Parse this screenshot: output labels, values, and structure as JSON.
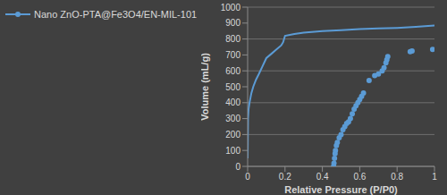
{
  "chart_data": {
    "type": "line",
    "xlabel": "Relative Pressure (P/P0)",
    "ylabel": "Volume (mL/g)",
    "xlim": [
      0,
      1
    ],
    "xticks": [
      0,
      0.2,
      0.4,
      0.6,
      0.8,
      1
    ],
    "ylim": [
      0,
      1000
    ],
    "yticks": [
      0,
      100,
      200,
      300,
      400,
      500,
      600,
      700,
      800,
      900,
      1000
    ],
    "grid": true,
    "legend": "left",
    "series": [
      {
        "name": "Nano ZnO-PTA@Fe3O4/EN-MIL-101",
        "color": "#5b9bd5",
        "line_style": "solid",
        "marker": "none",
        "x": [
          0,
          0.002,
          0.005,
          0.01,
          0.02,
          0.03,
          0.045,
          0.06,
          0.08,
          0.1,
          0.13,
          0.15,
          0.18,
          0.19,
          0.2,
          0.25,
          0.3,
          0.4,
          0.5,
          0.6,
          0.7,
          0.8,
          0.9,
          0.95,
          1
        ],
        "values": [
          50,
          300,
          360,
          400,
          460,
          500,
          545,
          580,
          630,
          680,
          710,
          730,
          760,
          780,
          820,
          832,
          840,
          850,
          856,
          862,
          866,
          870,
          876,
          880,
          885
        ]
      },
      {
        "color": "#5b9bd5",
        "line_style": "none",
        "marker": "circle",
        "x": [
          0.46,
          0.462,
          0.465,
          0.468,
          0.47,
          0.475,
          0.48,
          0.49,
          0.5,
          0.51,
          0.52,
          0.53,
          0.54,
          0.55,
          0.56,
          0.57,
          0.58,
          0.59,
          0.6,
          0.61,
          0.62,
          0.65,
          0.68,
          0.7,
          0.72,
          0.73,
          0.74,
          0.745,
          0.75,
          0.87,
          0.88,
          0.99
        ],
        "values": [
          0,
          20,
          50,
          80,
          100,
          130,
          150,
          180,
          200,
          230,
          250,
          270,
          280,
          300,
          330,
          360,
          380,
          400,
          420,
          440,
          460,
          540,
          570,
          580,
          600,
          620,
          650,
          670,
          690,
          720,
          725,
          735
        ]
      }
    ]
  }
}
